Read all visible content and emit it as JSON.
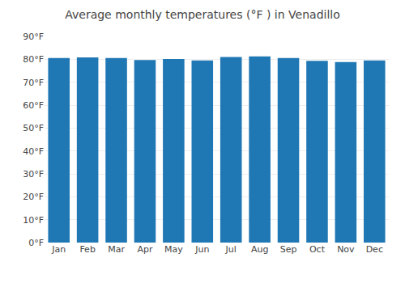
{
  "chart_data": {
    "type": "bar",
    "title": "Average monthly temperatures (°F ) in Venadillo",
    "categories": [
      "Jan",
      "Feb",
      "Mar",
      "Apr",
      "May",
      "Jun",
      "Jul",
      "Aug",
      "Sep",
      "Oct",
      "Nov",
      "Dec"
    ],
    "values": [
      80.6,
      80.8,
      80.6,
      79.7,
      80.1,
      79.5,
      81.0,
      81.3,
      80.6,
      79.3,
      78.8,
      79.5
    ],
    "ylim": [
      0,
      90
    ],
    "yticks": [
      {
        "value": 0,
        "label": "0°F"
      },
      {
        "value": 10,
        "label": "10°F"
      },
      {
        "value": 20,
        "label": "20°F"
      },
      {
        "value": 30,
        "label": "30°F"
      },
      {
        "value": 40,
        "label": "40°F"
      },
      {
        "value": 50,
        "label": "50°F"
      },
      {
        "value": 60,
        "label": "60°F"
      },
      {
        "value": 70,
        "label": "70°F"
      },
      {
        "value": 80,
        "label": "80°F"
      },
      {
        "value": 90,
        "label": "90°F"
      }
    ],
    "grid": true
  }
}
